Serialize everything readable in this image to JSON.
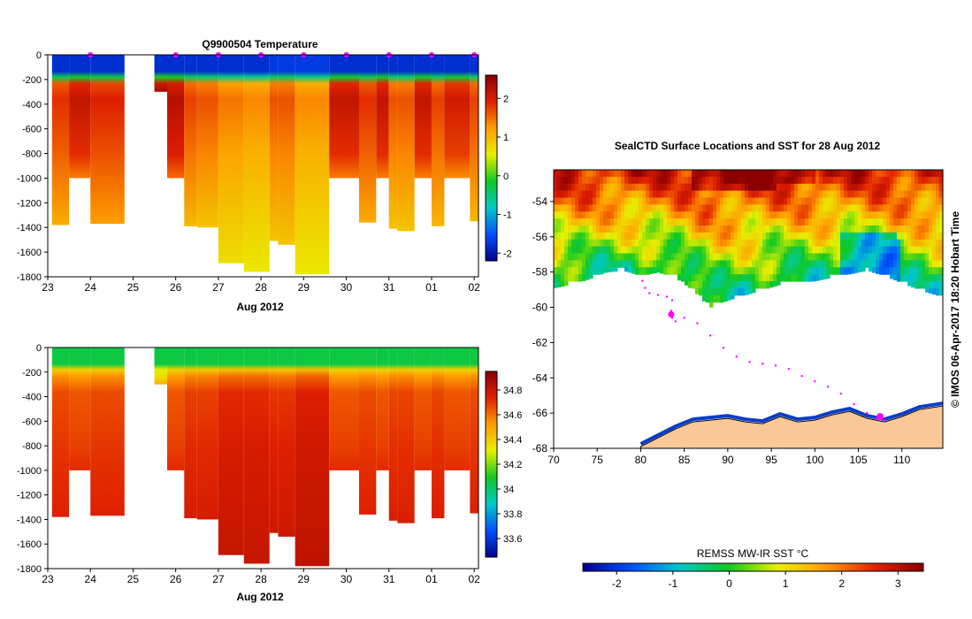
{
  "chart_data": [
    {
      "id": "temperature-section",
      "type": "heatmap",
      "title": "Q9900504  Temperature",
      "xlabel": "Aug 2012",
      "ylabel": "",
      "x_ticks": [
        "23",
        "24",
        "25",
        "26",
        "27",
        "28",
        "29",
        "30",
        "31",
        "01",
        "02"
      ],
      "y_ticks": [
        "0",
        "-200",
        "-400",
        "-600",
        "-800",
        "-1000",
        "-1200",
        "-1400",
        "-1600",
        "-1800"
      ],
      "xlim": [
        23,
        33.1
      ],
      "ylim": [
        -1800,
        0
      ],
      "colorbar_ticks": [
        "2",
        "1",
        "0",
        "-1",
        "-2"
      ],
      "colorbar_range": [
        -2.2,
        2.6
      ],
      "colormap": [
        "#00008f",
        "#0050ff",
        "#00c8c8",
        "#10c820",
        "#e8ef00",
        "#ff9c00",
        "#e02000",
        "#8a0000"
      ],
      "surface_markers": [
        24.0,
        26.0,
        27.0,
        28.0,
        29.0,
        30.0,
        31.0,
        32.0,
        33.0
      ],
      "profiles": [
        {
          "start": 23.1,
          "end": 23.5,
          "max_depth": 1380,
          "surface": -1.8,
          "deep": 1.1
        },
        {
          "start": 23.5,
          "end": 24.0,
          "max_depth": 1000,
          "surface": -1.8,
          "deep": 1.4
        },
        {
          "start": 24.0,
          "end": 24.8,
          "max_depth": 1370,
          "surface": -1.8,
          "deep": 1.2
        },
        {
          "start": 25.5,
          "end": 25.8,
          "max_depth": 300,
          "surface": -1.8,
          "deep": 1.6
        },
        {
          "start": 25.8,
          "end": 26.2,
          "max_depth": 1000,
          "surface": -1.8,
          "deep": 1.5
        },
        {
          "start": 26.2,
          "end": 26.5,
          "max_depth": 1390,
          "surface": -1.8,
          "deep": 1.0
        },
        {
          "start": 26.5,
          "end": 27.0,
          "max_depth": 1400,
          "surface": -1.8,
          "deep": 0.9
        },
        {
          "start": 27.0,
          "end": 27.6,
          "max_depth": 1690,
          "surface": -1.8,
          "deep": 0.7
        },
        {
          "start": 27.6,
          "end": 28.2,
          "max_depth": 1760,
          "surface": -1.8,
          "deep": 0.6
        },
        {
          "start": 28.2,
          "end": 28.4,
          "max_depth": 1510,
          "surface": -1.7,
          "deep": 0.9
        },
        {
          "start": 28.4,
          "end": 28.8,
          "max_depth": 1540,
          "surface": -1.7,
          "deep": 0.9
        },
        {
          "start": 28.8,
          "end": 29.6,
          "max_depth": 1780,
          "surface": -1.7,
          "deep": 0.6
        },
        {
          "start": 29.6,
          "end": 30.3,
          "max_depth": 1000,
          "surface": -1.8,
          "deep": 1.4
        },
        {
          "start": 30.3,
          "end": 30.7,
          "max_depth": 1360,
          "surface": -1.8,
          "deep": 1.1
        },
        {
          "start": 30.7,
          "end": 31.0,
          "max_depth": 1000,
          "surface": -1.8,
          "deep": 1.4
        },
        {
          "start": 31.0,
          "end": 31.2,
          "max_depth": 1410,
          "surface": -1.8,
          "deep": 0.9
        },
        {
          "start": 31.2,
          "end": 31.6,
          "max_depth": 1430,
          "surface": -1.8,
          "deep": 0.9
        },
        {
          "start": 31.6,
          "end": 32.0,
          "max_depth": 1000,
          "surface": -1.8,
          "deep": 1.4
        },
        {
          "start": 32.0,
          "end": 32.3,
          "max_depth": 1390,
          "surface": -1.8,
          "deep": 1.0
        },
        {
          "start": 32.3,
          "end": 32.9,
          "max_depth": 1000,
          "surface": -1.8,
          "deep": 1.3
        },
        {
          "start": 32.9,
          "end": 33.1,
          "max_depth": 1350,
          "surface": -1.8,
          "deep": 1.0
        }
      ]
    },
    {
      "id": "salinity-section",
      "type": "heatmap",
      "title": "",
      "xlabel": "Aug 2012",
      "ylabel": "",
      "x_ticks": [
        "23",
        "24",
        "25",
        "26",
        "27",
        "28",
        "29",
        "30",
        "31",
        "01",
        "02"
      ],
      "y_ticks": [
        "0",
        "-200",
        "-400",
        "-600",
        "-800",
        "-1000",
        "-1200",
        "-1400",
        "-1600",
        "-1800"
      ],
      "xlim": [
        23,
        33.1
      ],
      "ylim": [
        -1800,
        0
      ],
      "colorbar_ticks": [
        "34.8",
        "34.6",
        "34.4",
        "34.2",
        "34",
        "33.8",
        "33.6"
      ],
      "colorbar_range": [
        33.45,
        34.95
      ],
      "colormap": [
        "#00008f",
        "#0050ff",
        "#00c8c8",
        "#10c820",
        "#e8ef00",
        "#ff9c00",
        "#e02000",
        "#8a0000"
      ],
      "profiles": [
        {
          "start": 23.1,
          "end": 23.5,
          "max_depth": 1380,
          "surface": 34.05,
          "deep": 34.74
        },
        {
          "start": 23.5,
          "end": 24.0,
          "max_depth": 1000,
          "surface": 34.05,
          "deep": 34.72
        },
        {
          "start": 24.0,
          "end": 24.8,
          "max_depth": 1370,
          "surface": 34.05,
          "deep": 34.74
        },
        {
          "start": 25.5,
          "end": 25.8,
          "max_depth": 300,
          "surface": 34.05,
          "deep": 34.55
        },
        {
          "start": 25.8,
          "end": 26.2,
          "max_depth": 1000,
          "surface": 34.05,
          "deep": 34.72
        },
        {
          "start": 26.2,
          "end": 26.5,
          "max_depth": 1390,
          "surface": 34.05,
          "deep": 34.76
        },
        {
          "start": 26.5,
          "end": 27.0,
          "max_depth": 1400,
          "surface": 34.05,
          "deep": 34.76
        },
        {
          "start": 27.0,
          "end": 27.6,
          "max_depth": 1690,
          "surface": 34.05,
          "deep": 34.8
        },
        {
          "start": 27.6,
          "end": 28.2,
          "max_depth": 1760,
          "surface": 34.05,
          "deep": 34.8
        },
        {
          "start": 28.2,
          "end": 28.4,
          "max_depth": 1510,
          "surface": 34.05,
          "deep": 34.78
        },
        {
          "start": 28.4,
          "end": 28.8,
          "max_depth": 1540,
          "surface": 34.05,
          "deep": 34.78
        },
        {
          "start": 28.8,
          "end": 29.6,
          "max_depth": 1780,
          "surface": 34.05,
          "deep": 34.82
        },
        {
          "start": 29.6,
          "end": 30.3,
          "max_depth": 1000,
          "surface": 34.05,
          "deep": 34.72
        },
        {
          "start": 30.3,
          "end": 30.7,
          "max_depth": 1360,
          "surface": 34.05,
          "deep": 34.74
        },
        {
          "start": 30.7,
          "end": 31.0,
          "max_depth": 1000,
          "surface": 34.05,
          "deep": 34.72
        },
        {
          "start": 31.0,
          "end": 31.2,
          "max_depth": 1410,
          "surface": 34.05,
          "deep": 34.75
        },
        {
          "start": 31.2,
          "end": 31.6,
          "max_depth": 1430,
          "surface": 34.05,
          "deep": 34.75
        },
        {
          "start": 31.6,
          "end": 32.0,
          "max_depth": 1000,
          "surface": 34.05,
          "deep": 34.72
        },
        {
          "start": 32.0,
          "end": 32.3,
          "max_depth": 1390,
          "surface": 34.05,
          "deep": 34.75
        },
        {
          "start": 32.3,
          "end": 32.9,
          "max_depth": 1000,
          "surface": 34.05,
          "deep": 34.72
        },
        {
          "start": 32.9,
          "end": 33.1,
          "max_depth": 1350,
          "surface": 34.05,
          "deep": 34.74
        }
      ]
    },
    {
      "id": "sst-map",
      "type": "heatmap",
      "title": "SealCTD Surface Locations and SST for 28 Aug 2012",
      "xlabel": "",
      "ylabel": "",
      "x_ticks": [
        "70",
        "75",
        "80",
        "85",
        "90",
        "95",
        "100",
        "105",
        "110"
      ],
      "y_ticks": [
        "-54",
        "-56",
        "-58",
        "-60",
        "-62",
        "-64",
        "-66",
        "-68"
      ],
      "xlim": [
        70,
        114.7
      ],
      "ylim": [
        -68,
        -52.2
      ],
      "side_label": "© IMOS 06-Apr-2017 18:20 Hobart Time",
      "colorbar_label": "REMSS MW-IR SST °C",
      "colorbar_ticks": [
        "-2",
        "-1",
        "0",
        "1",
        "2",
        "3"
      ],
      "colorbar_range": [
        -2.6,
        3.45
      ],
      "colormap": [
        "#00008f",
        "#0050ff",
        "#00c8c8",
        "#10c820",
        "#e8ef00",
        "#ff9c00",
        "#e02000",
        "#8a0000"
      ],
      "land_color": "#fac898",
      "track_color": "#ff00ff",
      "ice_edge": [
        [
          70,
          -58.9
        ],
        [
          72,
          -58.7
        ],
        [
          74,
          -58.4
        ],
        [
          76,
          -58.0
        ],
        [
          78,
          -57.9
        ],
        [
          80,
          -58.2
        ],
        [
          82,
          -58.0
        ],
        [
          84,
          -58.3
        ],
        [
          86,
          -59.0
        ],
        [
          88,
          -60.0
        ],
        [
          90,
          -59.6
        ],
        [
          92,
          -59.3
        ],
        [
          94,
          -59.0
        ],
        [
          96,
          -58.7
        ],
        [
          98,
          -58.6
        ],
        [
          100,
          -58.5
        ],
        [
          102,
          -58.3
        ],
        [
          104,
          -58.1
        ],
        [
          106,
          -57.9
        ],
        [
          108,
          -58.2
        ],
        [
          110,
          -58.6
        ],
        [
          112,
          -59.0
        ],
        [
          114.7,
          -59.4
        ]
      ],
      "coastline": [
        [
          80,
          -67.9
        ],
        [
          82,
          -67.4
        ],
        [
          84,
          -66.9
        ],
        [
          86,
          -66.5
        ],
        [
          88,
          -66.4
        ],
        [
          90,
          -66.3
        ],
        [
          92,
          -66.5
        ],
        [
          94,
          -66.6
        ],
        [
          96,
          -66.2
        ],
        [
          98,
          -66.5
        ],
        [
          100,
          -66.4
        ],
        [
          102,
          -66.1
        ],
        [
          104,
          -65.9
        ],
        [
          106,
          -66.3
        ],
        [
          108,
          -66.5
        ],
        [
          110,
          -66.2
        ],
        [
          112,
          -65.8
        ],
        [
          114.7,
          -65.6
        ]
      ],
      "track": [
        [
          80.2,
          -58.5
        ],
        [
          80.5,
          -58.9
        ],
        [
          81.0,
          -59.2
        ],
        [
          82.0,
          -59.3
        ],
        [
          83.0,
          -59.4
        ],
        [
          83.6,
          -59.6
        ],
        [
          83.5,
          -60.2
        ],
        [
          83.6,
          -60.6
        ],
        [
          84.0,
          -60.8
        ],
        [
          85.0,
          -60.6
        ],
        [
          86.5,
          -60.9
        ],
        [
          88.0,
          -61.6
        ],
        [
          89.5,
          -62.3
        ],
        [
          91.0,
          -62.8
        ],
        [
          92.5,
          -63.1
        ],
        [
          94.0,
          -63.2
        ],
        [
          95.5,
          -63.3
        ],
        [
          97.0,
          -63.5
        ],
        [
          98.5,
          -63.9
        ],
        [
          100.0,
          -64.2
        ],
        [
          101.5,
          -64.5
        ],
        [
          103.0,
          -64.9
        ],
        [
          104.5,
          -65.5
        ],
        [
          106.0,
          -66.0
        ],
        [
          107.0,
          -66.3
        ],
        [
          108.0,
          -66.4
        ]
      ]
    }
  ]
}
